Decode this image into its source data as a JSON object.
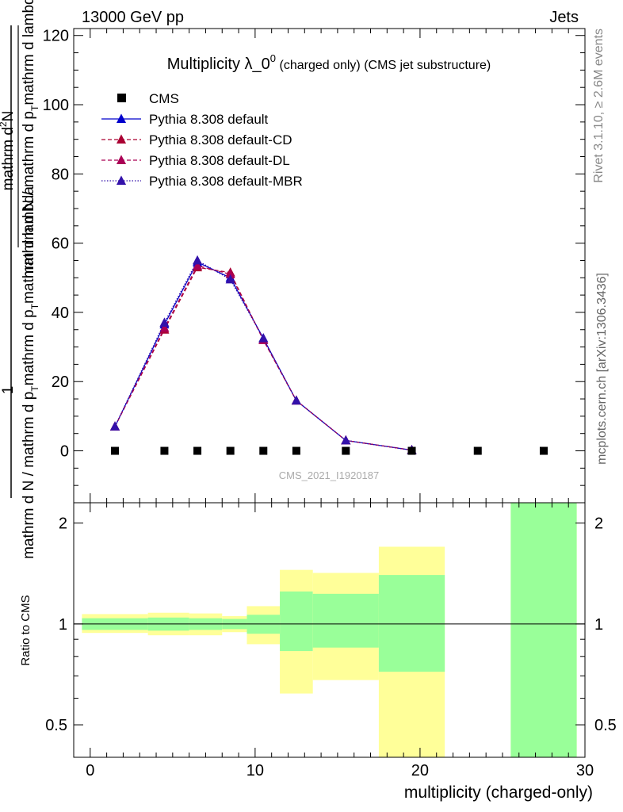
{
  "header": {
    "left": "13000 GeV pp",
    "right": "Jets"
  },
  "side_labels": {
    "rivet": "Rivet 3.1.10, ≥ 2.6M events",
    "mcplots": "mcplots.cern.ch [arXiv:1306.3436]"
  },
  "watermark": "CMS_2021_I1920187",
  "colors": {
    "data": "#000000",
    "default": "#0000cc",
    "cd": "#aa0033",
    "dl": "#aa0055",
    "mbr": "#3311aa",
    "band_inner": "#99ff99",
    "band_outer": "#ffff99"
  },
  "chart_data": [
    {
      "type": "line",
      "title_main": "Multiplicity λ_0",
      "title_sup": "0",
      "title_suffix": "(charged only) (CMS jet substructure)",
      "ylabel_top": "mathrm d",
      "ylabel_top_sup": "2",
      "ylabel_top_end": "N",
      "ylabel_bottom": "mathrm d N / mathrm d p",
      "ylabel_bottom_sub": "T",
      "ylabel_bottom_end": "mathrm d lambda",
      "ylabel_numer": "1",
      "ylabel_denom": "mathrm d N / mathrm d p",
      "ylabel_denom_sub": "T",
      "ylabel_denom_end": "mathrm d p",
      "ylabel_denom_sub2": "T",
      "ylabel_denom_end2": "mathrm d lambda",
      "xlim": [
        -1,
        30
      ],
      "ylim": [
        -15,
        122
      ],
      "yticks": [
        0,
        20,
        40,
        60,
        80,
        100,
        120
      ],
      "legend": {
        "placement": "top-left",
        "entries": [
          {
            "label": "CMS",
            "style": "square"
          },
          {
            "label": "Pythia 8.308 default",
            "style": "solid"
          },
          {
            "label": "Pythia 8.308 default-CD",
            "style": "dashed"
          },
          {
            "label": "Pythia 8.308 default-DL",
            "style": "dashed"
          },
          {
            "label": "Pythia 8.308 default-MBR",
            "style": "dotted"
          }
        ]
      },
      "data_points": {
        "name": "CMS",
        "x": [
          1.5,
          4.5,
          6.5,
          8.5,
          10.5,
          12.5,
          15.5,
          19.5,
          23.5,
          27.5
        ],
        "y": [
          0,
          0,
          0,
          0,
          0,
          0,
          0,
          0,
          0,
          0
        ]
      },
      "series": [
        {
          "name": "Pythia 8.308 default",
          "key": "default",
          "x": [
            1.5,
            4.5,
            6.5,
            8.5,
            10.5,
            12.5,
            15.5,
            19.5
          ],
          "y": [
            7,
            36.5,
            54.5,
            50,
            32.5,
            14.5,
            3,
            0.2
          ]
        },
        {
          "name": "Pythia 8.308 default-CD",
          "key": "cd",
          "x": [
            1.5,
            4.5,
            6.5,
            8.5,
            10.5,
            12.5,
            15.5,
            19.5
          ],
          "y": [
            7,
            35,
            53,
            51.5,
            32,
            14.5,
            3,
            0.2
          ]
        },
        {
          "name": "Pythia 8.308 default-DL",
          "key": "dl",
          "x": [
            1.5,
            4.5,
            6.5,
            8.5,
            10.5,
            12.5,
            15.5,
            19.5
          ],
          "y": [
            7,
            35.5,
            53.5,
            51,
            32,
            14.5,
            3,
            0.2
          ]
        },
        {
          "name": "Pythia 8.308 default-MBR",
          "key": "mbr",
          "x": [
            1.5,
            4.5,
            6.5,
            8.5,
            10.5,
            12.5,
            15.5,
            19.5
          ],
          "y": [
            7,
            37,
            55,
            49.5,
            32.5,
            14.5,
            3,
            0.2
          ]
        }
      ]
    },
    {
      "type": "area",
      "ylabel": "Ratio to CMS",
      "xlabel": "multiplicity (charged-only)",
      "xlim": [
        -1,
        30
      ],
      "ylim": [
        0.4,
        2.3
      ],
      "log_y": true,
      "xticks": [
        0,
        10,
        20,
        30
      ],
      "yticks": [
        0.5,
        1,
        2
      ],
      "ytick_labels": [
        "0.5",
        "1",
        "2"
      ],
      "bins": [
        {
          "lo": -0.5,
          "hi": 3.5,
          "inner": [
            0.96,
            1.04
          ],
          "outer": [
            0.94,
            1.07
          ]
        },
        {
          "lo": 3.5,
          "hi": 6.0,
          "inner": [
            0.955,
            1.045
          ],
          "outer": [
            0.925,
            1.08
          ]
        },
        {
          "lo": 6.0,
          "hi": 8.0,
          "inner": [
            0.96,
            1.04
          ],
          "outer": [
            0.925,
            1.075
          ]
        },
        {
          "lo": 8.0,
          "hi": 9.5,
          "inner": [
            0.965,
            1.035
          ],
          "outer": [
            0.945,
            1.055
          ]
        },
        {
          "lo": 9.5,
          "hi": 11.5,
          "inner": [
            0.935,
            1.065
          ],
          "outer": [
            0.87,
            1.13
          ]
        },
        {
          "lo": 11.5,
          "hi": 13.5,
          "inner": [
            0.83,
            1.25
          ],
          "outer": [
            0.62,
            1.45
          ]
        },
        {
          "lo": 13.5,
          "hi": 17.5,
          "inner": [
            0.85,
            1.23
          ],
          "outer": [
            0.68,
            1.42
          ]
        },
        {
          "lo": 17.5,
          "hi": 21.5,
          "inner": [
            0.72,
            1.4
          ],
          "outer": [
            0.3,
            1.7
          ]
        },
        {
          "lo": 25.5,
          "hi": 29.5,
          "inner": [
            0.3,
            3.0
          ],
          "outer": [
            0.3,
            3.0
          ]
        }
      ]
    }
  ]
}
